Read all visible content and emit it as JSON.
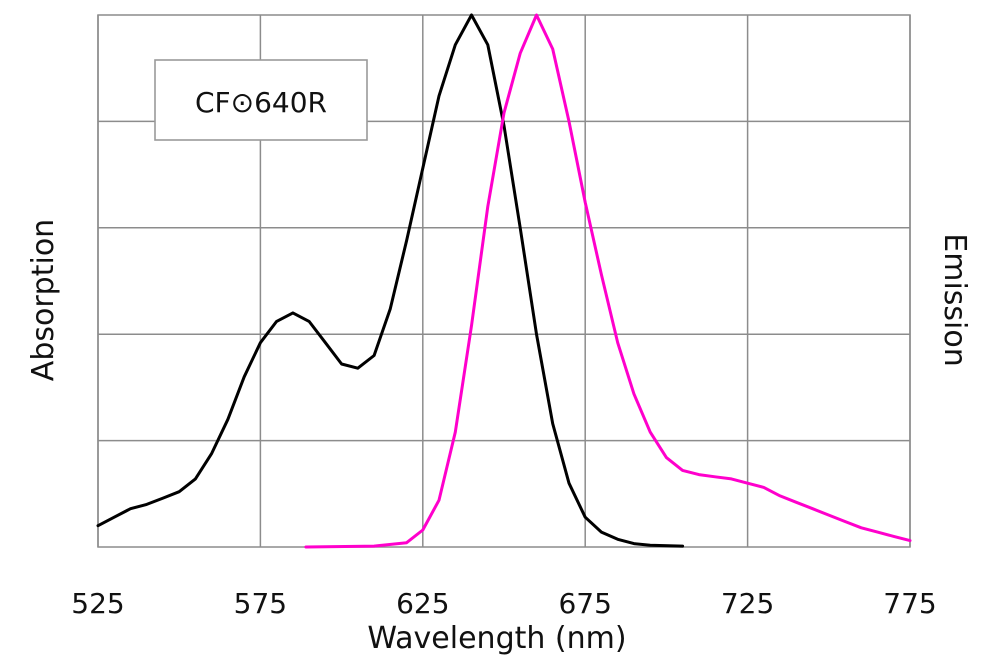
{
  "chart_data": {
    "type": "line",
    "legend_label": "CF⊙640R",
    "legend_position": "top-left",
    "xlabel": "Wavelength (nm)",
    "ylabel_left": "Absorption",
    "ylabel_right": "Emission",
    "xlim": [
      525,
      775
    ],
    "ylim": [
      0,
      1.25
    ],
    "x_ticks": [
      "525",
      "575",
      "625",
      "675",
      "725",
      "775"
    ],
    "y_gridlines": [
      0.25,
      0.5,
      0.75,
      1.0
    ],
    "grid": true,
    "series": [
      {
        "color": "#000000",
        "points": [
          [
            525,
            0.05
          ],
          [
            530,
            0.07
          ],
          [
            535,
            0.09
          ],
          [
            540,
            0.1
          ],
          [
            545,
            0.115
          ],
          [
            550,
            0.13
          ],
          [
            555,
            0.16
          ],
          [
            560,
            0.22
          ],
          [
            565,
            0.3
          ],
          [
            570,
            0.4
          ],
          [
            575,
            0.48
          ],
          [
            580,
            0.53
          ],
          [
            585,
            0.55
          ],
          [
            590,
            0.53
          ],
          [
            595,
            0.48
          ],
          [
            600,
            0.43
          ],
          [
            605,
            0.42
          ],
          [
            610,
            0.45
          ],
          [
            615,
            0.56
          ],
          [
            620,
            0.72
          ],
          [
            625,
            0.89
          ],
          [
            630,
            1.06
          ],
          [
            635,
            1.18
          ],
          [
            640,
            1.25
          ],
          [
            645,
            1.18
          ],
          [
            650,
            0.99
          ],
          [
            655,
            0.75
          ],
          [
            660,
            0.5
          ],
          [
            665,
            0.29
          ],
          [
            670,
            0.15
          ],
          [
            675,
            0.07
          ],
          [
            680,
            0.035
          ],
          [
            685,
            0.018
          ],
          [
            690,
            0.008
          ],
          [
            695,
            0.004
          ],
          [
            705,
            0.002
          ]
        ]
      },
      {
        "color": "#ff00cc",
        "points": [
          [
            589,
            0.0
          ],
          [
            610,
            0.002
          ],
          [
            620,
            0.01
          ],
          [
            625,
            0.04
          ],
          [
            630,
            0.11
          ],
          [
            635,
            0.27
          ],
          [
            640,
            0.52
          ],
          [
            645,
            0.8
          ],
          [
            650,
            1.02
          ],
          [
            655,
            1.16
          ],
          [
            660,
            1.25
          ],
          [
            665,
            1.17
          ],
          [
            670,
            1.0
          ],
          [
            675,
            0.81
          ],
          [
            680,
            0.64
          ],
          [
            685,
            0.48
          ],
          [
            690,
            0.36
          ],
          [
            695,
            0.27
          ],
          [
            700,
            0.21
          ],
          [
            705,
            0.18
          ],
          [
            710,
            0.17
          ],
          [
            715,
            0.165
          ],
          [
            720,
            0.16
          ],
          [
            725,
            0.15
          ],
          [
            730,
            0.14
          ],
          [
            735,
            0.12
          ],
          [
            740,
            0.105
          ],
          [
            745,
            0.09
          ],
          [
            750,
            0.075
          ],
          [
            755,
            0.06
          ],
          [
            760,
            0.045
          ],
          [
            765,
            0.035
          ],
          [
            770,
            0.025
          ],
          [
            775,
            0.015
          ]
        ]
      }
    ]
  }
}
